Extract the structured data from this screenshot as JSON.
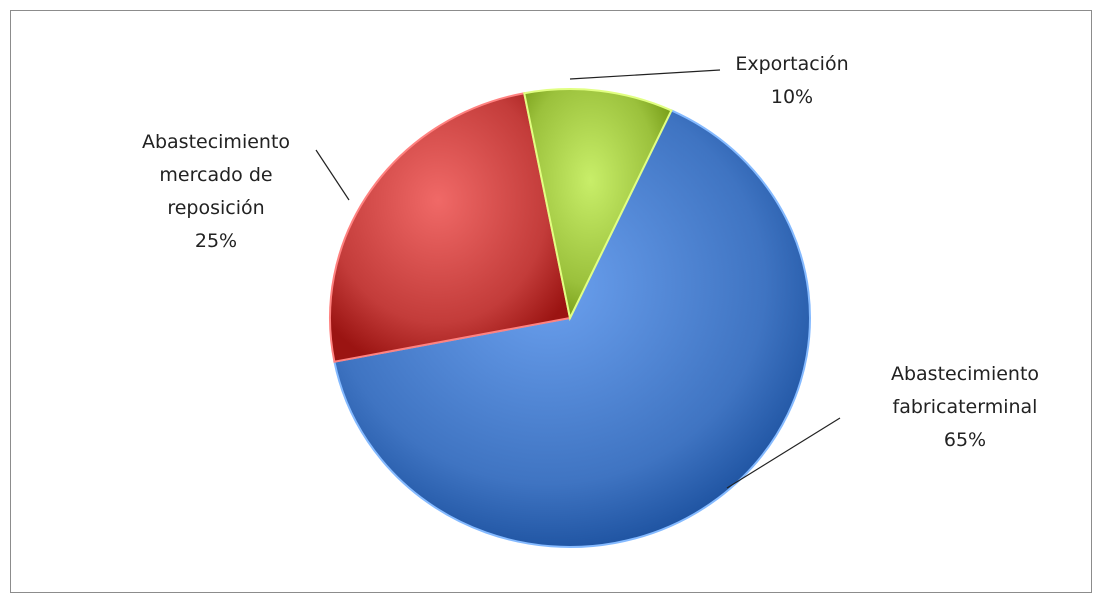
{
  "chart_data": {
    "type": "pie",
    "title": "",
    "slices": [
      {
        "name_lines": [
          "Abastecimiento",
          "fabricaterminal"
        ],
        "value": 65,
        "percent_label": "65%",
        "color": "#3f74c2"
      },
      {
        "name_lines": [
          "Abastecimiento",
          "mercado de",
          "reposición"
        ],
        "value": 25,
        "percent_label": "25%",
        "color": "#c33c3a"
      },
      {
        "name_lines": [
          "Exportación"
        ],
        "value": 10,
        "percent_label": "10%",
        "color": "#9bc13c"
      }
    ],
    "start_angle_deg": 25,
    "direction": "clockwise",
    "legend": "none"
  }
}
